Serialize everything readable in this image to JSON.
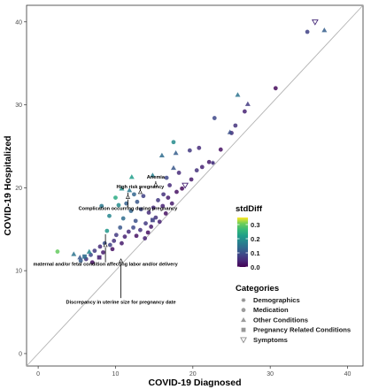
{
  "chart_data": {
    "type": "scatter",
    "xlabel": "COVID-19 Diagnosed",
    "ylabel": "COVID-19 Hospitalized",
    "xlim": [
      -1.5,
      42
    ],
    "ylim": [
      -1.5,
      42
    ],
    "x_ticks": [
      0,
      10,
      20,
      30,
      40
    ],
    "y_ticks": [
      0,
      10,
      20,
      30,
      40
    ],
    "grid": false,
    "reference_line": "y = x",
    "color_scale": {
      "title": "stdDiff",
      "min": 0.0,
      "max": 0.35,
      "ticks": [
        0.0,
        0.1,
        0.2,
        0.3
      ],
      "palette": "viridis"
    },
    "shape_legend": {
      "title": "Categories",
      "placement": "right",
      "entries": [
        {
          "name": "Demographics",
          "shape": "asterisk"
        },
        {
          "name": "Medication",
          "shape": "circle"
        },
        {
          "name": "Other Conditions",
          "shape": "triangle"
        },
        {
          "name": "Pregnancy Related Conditions",
          "shape": "square"
        },
        {
          "name": "Symptoms",
          "shape": "triangle-down"
        }
      ]
    },
    "annotations": [
      {
        "text": "Anemia",
        "x": 15.2,
        "y": 20.9
      },
      {
        "text": "High risk pregnancy",
        "x": 13.2,
        "y": 20.2
      },
      {
        "text": "Complication occurring during pregnancy",
        "x": 11.6,
        "y": 19.5
      },
      {
        "text": "maternal and/or fetal condition affecting labor and/or delivery",
        "x": 8.7,
        "y": 14.5
      },
      {
        "text": "Discrepancy in uterine size for pregnancy date",
        "x": 10.7,
        "y": 11.4
      }
    ],
    "points": [
      {
        "cat": "Symptoms",
        "x": 35.8,
        "y": 40.0,
        "s": 0.05
      },
      {
        "cat": "Medication",
        "x": 34.8,
        "y": 38.8,
        "s": 0.08
      },
      {
        "cat": "Other Conditions",
        "x": 37.0,
        "y": 39.0,
        "s": 0.12
      },
      {
        "cat": "Medication",
        "x": 30.7,
        "y": 32.0,
        "s": 0.01
      },
      {
        "cat": "Other Conditions",
        "x": 25.8,
        "y": 31.2,
        "s": 0.15
      },
      {
        "cat": "Medication",
        "x": 22.8,
        "y": 28.4,
        "s": 0.09
      },
      {
        "cat": "Other Conditions",
        "x": 27.1,
        "y": 30.1,
        "s": 0.07
      },
      {
        "cat": "Medication",
        "x": 26.7,
        "y": 29.2,
        "s": 0.04
      },
      {
        "cat": "Medication",
        "x": 25.5,
        "y": 27.5,
        "s": 0.06
      },
      {
        "cat": "Medication",
        "x": 25.0,
        "y": 26.6,
        "s": 0.05
      },
      {
        "cat": "Other Conditions",
        "x": 24.8,
        "y": 26.7,
        "s": 0.1
      },
      {
        "cat": "Medication",
        "x": 17.5,
        "y": 25.5,
        "s": 0.19
      },
      {
        "cat": "Other Conditions",
        "x": 16.0,
        "y": 23.9,
        "s": 0.14
      },
      {
        "cat": "Medication",
        "x": 19.6,
        "y": 24.5,
        "s": 0.07
      },
      {
        "cat": "Medication",
        "x": 20.8,
        "y": 24.8,
        "s": 0.05
      },
      {
        "cat": "Other Conditions",
        "x": 17.8,
        "y": 24.2,
        "s": 0.12
      },
      {
        "cat": "Medication",
        "x": 22.1,
        "y": 23.1,
        "s": 0.03
      },
      {
        "cat": "Demographics",
        "x": 22.6,
        "y": 23.0,
        "s": 0.06
      },
      {
        "cat": "Medication",
        "x": 21.2,
        "y": 22.5,
        "s": 0.04
      },
      {
        "cat": "Medication",
        "x": 20.5,
        "y": 22.1,
        "s": 0.06
      },
      {
        "cat": "Other Conditions",
        "x": 17.5,
        "y": 22.4,
        "s": 0.11
      },
      {
        "cat": "Medication",
        "x": 18.2,
        "y": 21.8,
        "s": 0.05
      },
      {
        "cat": "Symptoms",
        "x": 19.0,
        "y": 20.3,
        "s": 0.04
      },
      {
        "cat": "Medication",
        "x": 19.8,
        "y": 21.0,
        "s": 0.03
      },
      {
        "cat": "Medication",
        "x": 16.6,
        "y": 21.2,
        "s": 0.09
      },
      {
        "cat": "Medication",
        "x": 17.0,
        "y": 20.3,
        "s": 0.05
      },
      {
        "cat": "Other Conditions",
        "x": 12.1,
        "y": 21.3,
        "s": 0.22
      },
      {
        "cat": "Other Conditions",
        "x": 14.8,
        "y": 21.5,
        "s": 0.17
      },
      {
        "cat": "Other Conditions",
        "x": 10.8,
        "y": 19.9,
        "s": 0.2
      },
      {
        "cat": "Other Conditions",
        "x": 11.8,
        "y": 19.7,
        "s": 0.16
      },
      {
        "cat": "Medication",
        "x": 10.0,
        "y": 18.8,
        "s": 0.24
      },
      {
        "cat": "Medication",
        "x": 10.4,
        "y": 17.9,
        "s": 0.19
      },
      {
        "cat": "Medication",
        "x": 11.4,
        "y": 18.1,
        "s": 0.12
      },
      {
        "cat": "Medication",
        "x": 12.8,
        "y": 18.3,
        "s": 0.11
      },
      {
        "cat": "Medication",
        "x": 13.6,
        "y": 19.0,
        "s": 0.08
      },
      {
        "cat": "Medication",
        "x": 16.2,
        "y": 19.2,
        "s": 0.06
      },
      {
        "cat": "Medication",
        "x": 15.5,
        "y": 18.5,
        "s": 0.07
      },
      {
        "cat": "Medication",
        "x": 13.3,
        "y": 17.4,
        "s": 0.09
      },
      {
        "cat": "Medication",
        "x": 12.0,
        "y": 17.2,
        "s": 0.13
      },
      {
        "cat": "Medication",
        "x": 14.3,
        "y": 17.0,
        "s": 0.05
      },
      {
        "cat": "Medication",
        "x": 16.1,
        "y": 17.8,
        "s": 0.04
      },
      {
        "cat": "Medication",
        "x": 17.3,
        "y": 18.1,
        "s": 0.03
      },
      {
        "cat": "Medication",
        "x": 15.2,
        "y": 16.4,
        "s": 0.06
      },
      {
        "cat": "Medication",
        "x": 16.5,
        "y": 16.9,
        "s": 0.02
      },
      {
        "cat": "Pregnancy Related Conditions",
        "x": 14.8,
        "y": 16.1,
        "s": 0.08
      },
      {
        "cat": "Medication",
        "x": 12.6,
        "y": 16.0,
        "s": 0.1
      },
      {
        "cat": "Medication",
        "x": 11.0,
        "y": 16.3,
        "s": 0.14
      },
      {
        "cat": "Medication",
        "x": 13.9,
        "y": 15.7,
        "s": 0.07
      },
      {
        "cat": "Medication",
        "x": 15.7,
        "y": 15.9,
        "s": 0.04
      },
      {
        "cat": "Medication",
        "x": 14.6,
        "y": 15.3,
        "s": 0.03
      },
      {
        "cat": "Medication",
        "x": 12.3,
        "y": 15.2,
        "s": 0.09
      },
      {
        "cat": "Medication",
        "x": 13.2,
        "y": 14.9,
        "s": 0.06
      },
      {
        "cat": "Medication",
        "x": 11.7,
        "y": 14.7,
        "s": 0.05
      },
      {
        "cat": "Medication",
        "x": 10.6,
        "y": 15.2,
        "s": 0.11
      },
      {
        "cat": "Medication",
        "x": 10.1,
        "y": 14.3,
        "s": 0.07
      },
      {
        "cat": "Medication",
        "x": 11.2,
        "y": 14.1,
        "s": 0.04
      },
      {
        "cat": "Medication",
        "x": 12.7,
        "y": 14.2,
        "s": 0.02
      },
      {
        "cat": "Medication",
        "x": 9.8,
        "y": 13.6,
        "s": 0.06
      },
      {
        "cat": "Medication",
        "x": 10.8,
        "y": 13.3,
        "s": 0.03
      },
      {
        "cat": "Medication",
        "x": 9.3,
        "y": 13.1,
        "s": 0.08
      },
      {
        "cat": "Medication",
        "x": 8.6,
        "y": 13.3,
        "s": 0.1
      },
      {
        "cat": "Medication",
        "x": 8.0,
        "y": 12.9,
        "s": 0.05
      },
      {
        "cat": "Medication",
        "x": 9.6,
        "y": 12.6,
        "s": 0.02
      },
      {
        "cat": "Medication",
        "x": 7.3,
        "y": 12.4,
        "s": 0.07
      },
      {
        "cat": "Medication",
        "x": 8.4,
        "y": 12.2,
        "s": 0.03
      },
      {
        "cat": "Medication",
        "x": 6.8,
        "y": 11.9,
        "s": 0.09
      },
      {
        "cat": "Pregnancy Related Conditions",
        "x": 7.9,
        "y": 11.6,
        "s": 0.04
      },
      {
        "cat": "Medication",
        "x": 6.2,
        "y": 11.4,
        "s": 0.06
      },
      {
        "cat": "Medication",
        "x": 7.0,
        "y": 11.0,
        "s": 0.02
      },
      {
        "cat": "Medication",
        "x": 5.5,
        "y": 11.2,
        "s": 0.12
      },
      {
        "cat": "Other Conditions",
        "x": 4.6,
        "y": 12.0,
        "s": 0.15
      },
      {
        "cat": "Other Conditions",
        "x": 5.4,
        "y": 11.6,
        "s": 0.11
      },
      {
        "cat": "Other Conditions",
        "x": 6.6,
        "y": 12.3,
        "s": 0.18
      },
      {
        "cat": "Pregnancy Related Conditions",
        "x": 6.0,
        "y": 11.7,
        "s": 0.14
      },
      {
        "cat": "Medication",
        "x": 2.5,
        "y": 12.3,
        "s": 0.3
      },
      {
        "cat": "Medication",
        "x": 8.9,
        "y": 14.8,
        "s": 0.21
      },
      {
        "cat": "Medication",
        "x": 13.8,
        "y": 13.9,
        "s": 0.04
      },
      {
        "cat": "Medication",
        "x": 14.2,
        "y": 14.6,
        "s": 0.02
      },
      {
        "cat": "Medication",
        "x": 17.9,
        "y": 19.5,
        "s": 0.02
      },
      {
        "cat": "Medication",
        "x": 18.6,
        "y": 19.9,
        "s": 0.01
      },
      {
        "cat": "Medication",
        "x": 23.6,
        "y": 24.6,
        "s": 0.02
      },
      {
        "cat": "Medication",
        "x": 9.2,
        "y": 16.6,
        "s": 0.18
      },
      {
        "cat": "Medication",
        "x": 8.2,
        "y": 17.8,
        "s": 0.16
      },
      {
        "cat": "Medication",
        "x": 12.4,
        "y": 19.2,
        "s": 0.13
      },
      {
        "cat": "Medication",
        "x": 14.9,
        "y": 17.6,
        "s": 0.05
      },
      {
        "cat": "Medication",
        "x": 16.8,
        "y": 18.8,
        "s": 0.03
      }
    ]
  },
  "annotation_targets": {
    "Anemia": [
      15.2,
      20.3
    ],
    "High risk pregnancy": [
      13.2,
      19.4
    ],
    "Complication occurring during pregnancy": [
      11.6,
      18.8
    ],
    "maternal and/or fetal condition affecting labor and/or delivery": [
      8.7,
      13.0
    ],
    "Discrepancy in uterine size for pregnancy date": [
      10.7,
      11.1
    ]
  }
}
